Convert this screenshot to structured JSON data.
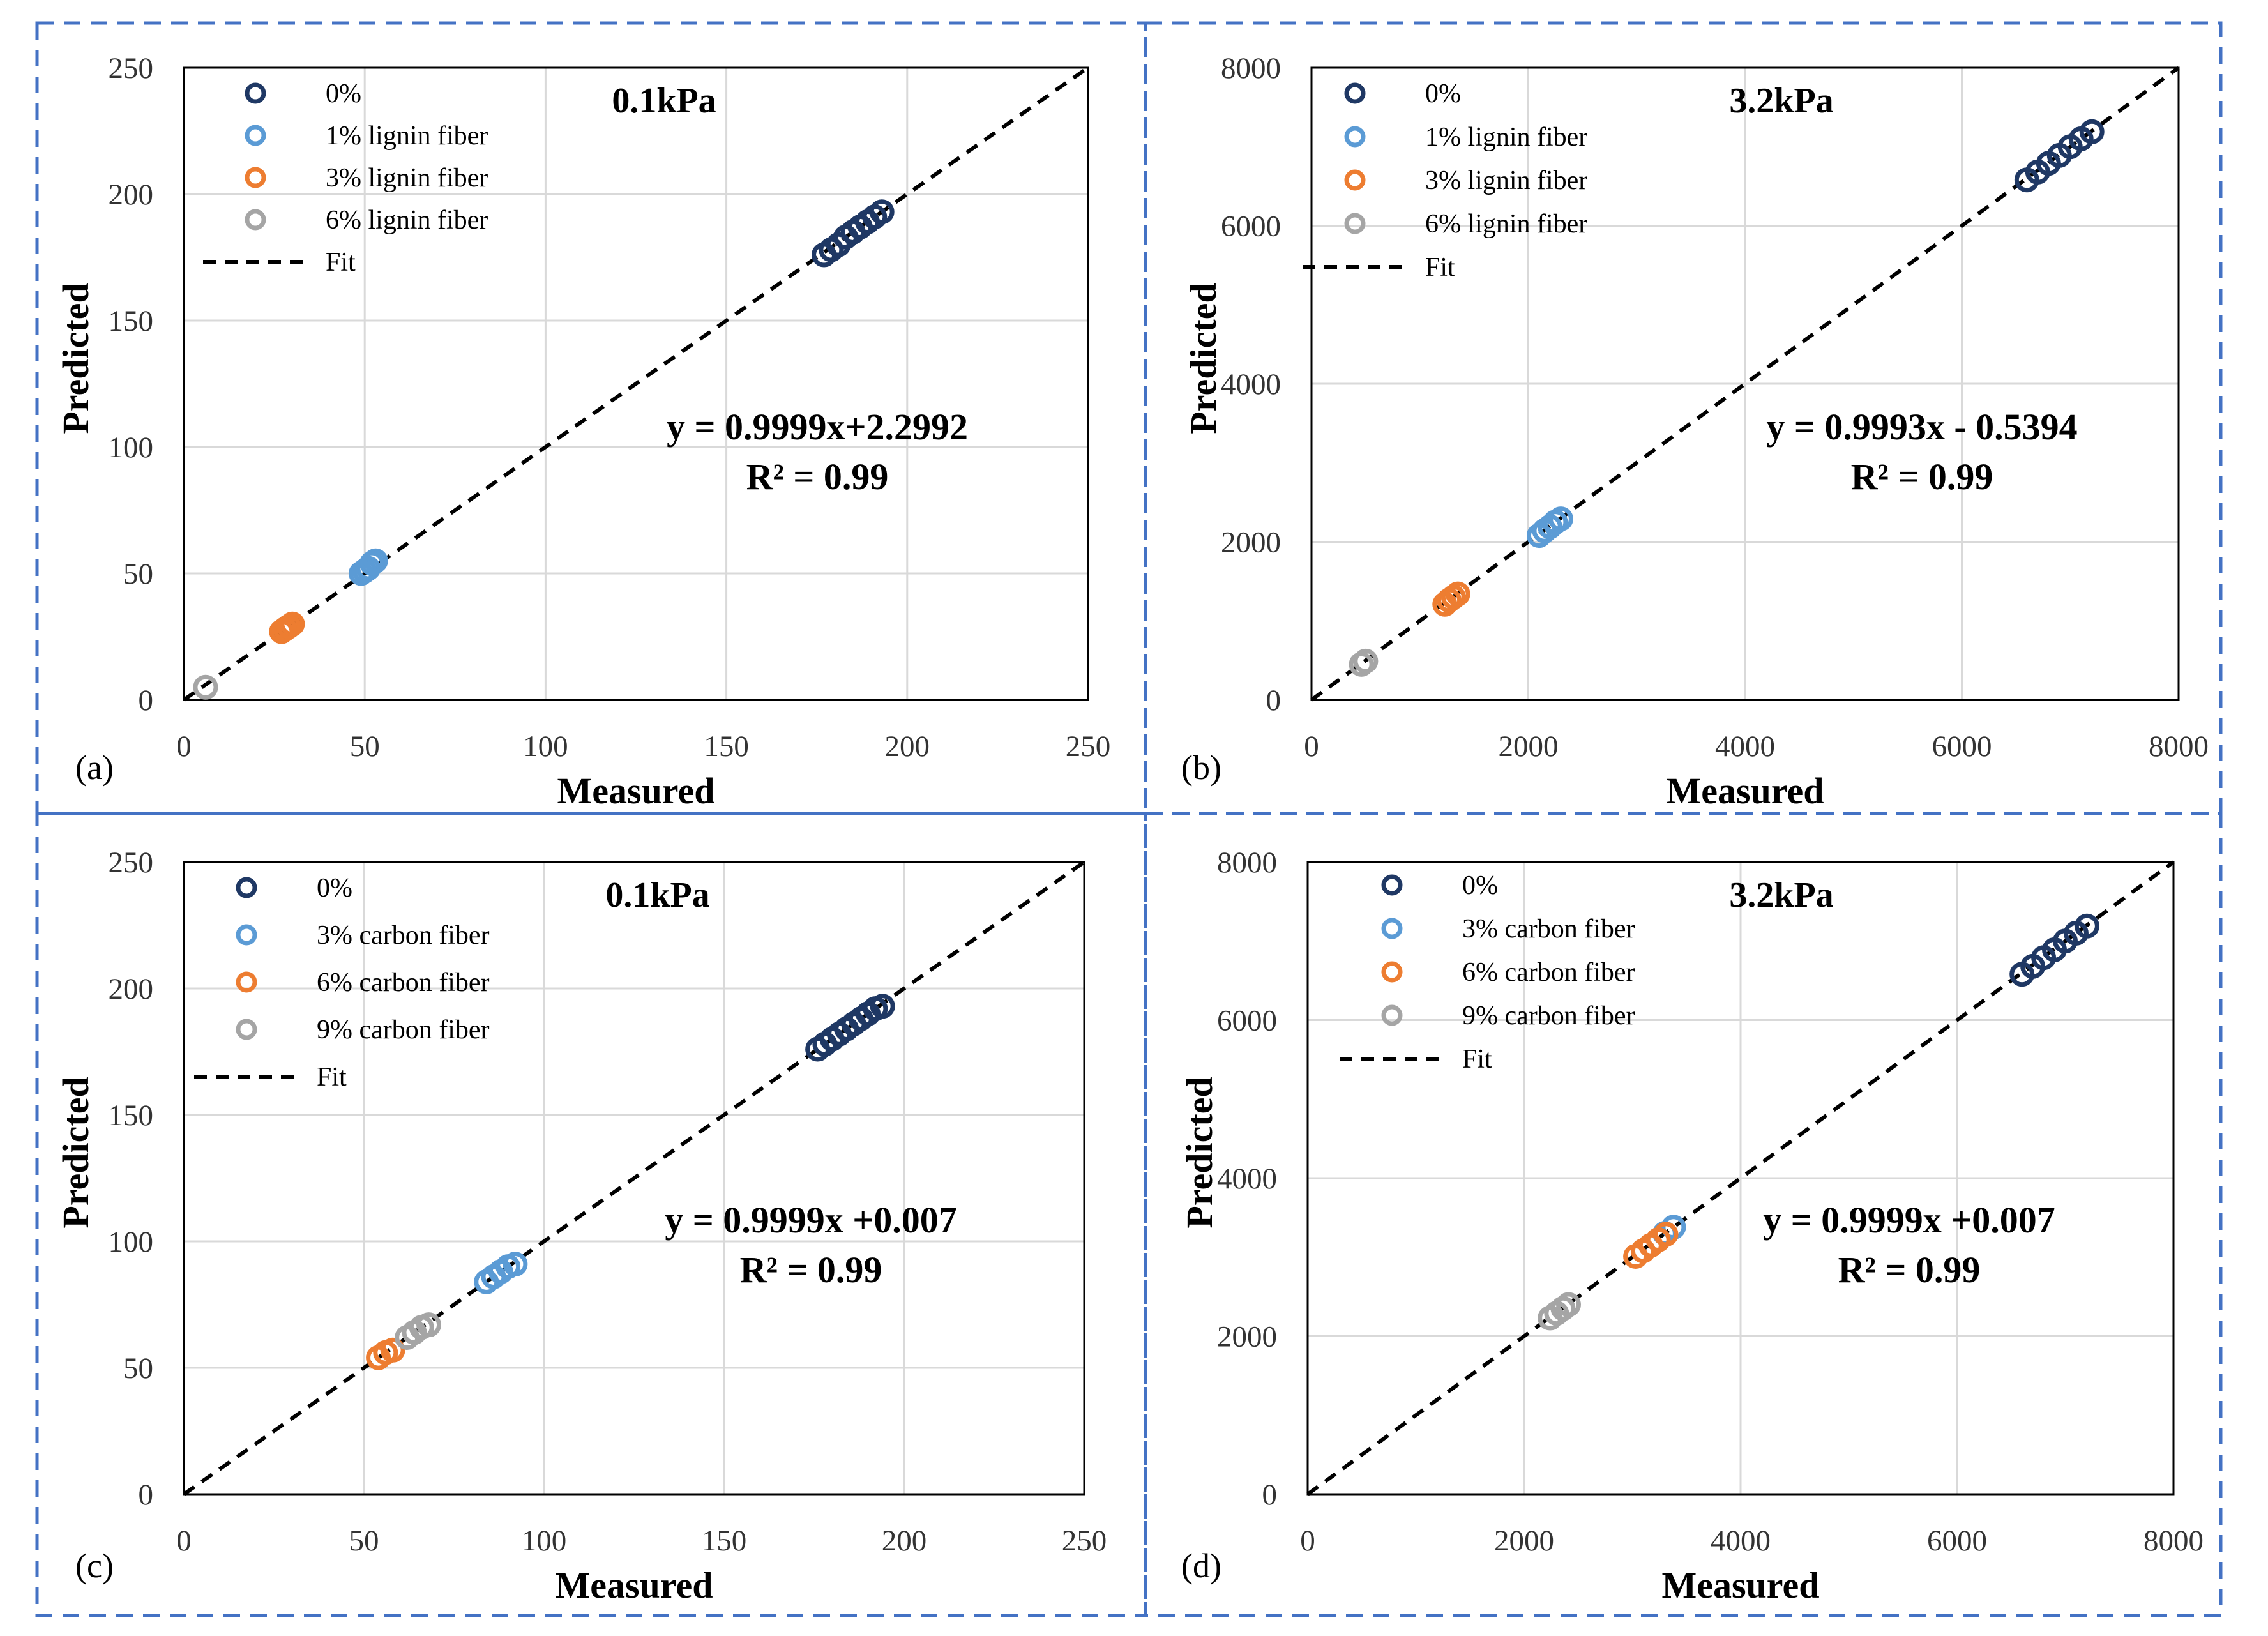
{
  "colors": {
    "border": "#4472C4",
    "grid": "#D9D9D9",
    "s0": "#1F3864",
    "s1": "#5B9BD5",
    "s2": "#ED7D31",
    "s3": "#A5A5A5",
    "fit": "#000000"
  },
  "panels": [
    {
      "label": "(a)",
      "chart_data": {
        "type": "scatter",
        "title": "0.1kPa",
        "xlabel": "Measured",
        "ylabel": "Predicted",
        "xlim": [
          0,
          250
        ],
        "ylim": [
          0,
          250
        ],
        "xticks": [
          "0",
          "50",
          "100",
          "150",
          "200",
          "250"
        ],
        "yticks": [
          "0",
          "50",
          "100",
          "150",
          "200",
          "250"
        ],
        "grid": true,
        "legend": "top-left",
        "equation": "y = 0.9999x+2.2992",
        "r2": "R² = 0.99",
        "fit_label": "Fit",
        "fit_line": [
          [
            0,
            0
          ],
          [
            250,
            250
          ]
        ],
        "series": [
          {
            "name": "0%",
            "x": [
              177,
              179,
              181,
              183,
              185,
              187,
              189,
              191,
              193
            ],
            "y": [
              176,
              178,
              180,
              183,
              185,
              187,
              189,
              191,
              193
            ]
          },
          {
            "name": "1% lignin fiber",
            "x": [
              49,
              50,
              51,
              52,
              53
            ],
            "y": [
              50,
              51,
              52,
              54,
              55
            ]
          },
          {
            "name": "3% lignin fiber",
            "x": [
              27,
              28,
              29,
              30
            ],
            "y": [
              27,
              28,
              29,
              30
            ]
          },
          {
            "name": "6% lignin fiber",
            "x": [
              6
            ],
            "y": [
              5
            ]
          }
        ]
      }
    },
    {
      "label": "(b)",
      "chart_data": {
        "type": "scatter",
        "title": "3.2kPa",
        "xlabel": "Measured",
        "ylabel": "Predicted",
        "xlim": [
          0,
          8000
        ],
        "ylim": [
          0,
          8000
        ],
        "xticks": [
          "0",
          "2000",
          "4000",
          "6000",
          "8000"
        ],
        "yticks": [
          "0",
          "2000",
          "4000",
          "6000",
          "8000"
        ],
        "grid": true,
        "legend": "top-left",
        "equation": "y = 0.9993x - 0.5394",
        "r2": "R² = 0.99",
        "fit_label": "Fit",
        "fit_line": [
          [
            0,
            0
          ],
          [
            8000,
            8000
          ]
        ],
        "series": [
          {
            "name": "0%",
            "x": [
              6600,
              6700,
              6800,
              6900,
              7000,
              7100,
              7200
            ],
            "y": [
              6580,
              6680,
              6790,
              6890,
              7000,
              7100,
              7190
            ]
          },
          {
            "name": "1% lignin fiber",
            "x": [
              2100,
              2150,
              2200,
              2250,
              2300
            ],
            "y": [
              2080,
              2140,
              2190,
              2250,
              2290
            ]
          },
          {
            "name": "3% lignin fiber",
            "x": [
              1230,
              1270,
              1310,
              1350
            ],
            "y": [
              1210,
              1260,
              1300,
              1340
            ]
          },
          {
            "name": "6% lignin fiber",
            "x": [
              460,
              500
            ],
            "y": [
              450,
              490
            ]
          }
        ]
      }
    },
    {
      "label": "(c)",
      "chart_data": {
        "type": "scatter",
        "title": "0.1kPa",
        "xlabel": "Measured",
        "ylabel": "Predicted",
        "xlim": [
          0,
          250
        ],
        "ylim": [
          0,
          250
        ],
        "xticks": [
          "0",
          "50",
          "100",
          "150",
          "200",
          "250"
        ],
        "yticks": [
          "0",
          "50",
          "100",
          "150",
          "200",
          "250"
        ],
        "grid": true,
        "legend": "top-left",
        "equation": "y = 0.9999x +0.007",
        "r2": "R² = 0.99",
        "fit_label": "Fit",
        "fit_line": [
          [
            0,
            0
          ],
          [
            250,
            250
          ]
        ],
        "series": [
          {
            "name": "0%",
            "x": [
              176,
              178,
              180,
              182,
              184,
              186,
              188,
              190,
              192,
              194
            ],
            "y": [
              176,
              178,
              180,
              182,
              184,
              186,
              188,
              190,
              192,
              193
            ]
          },
          {
            "name": "3% carbon fiber",
            "x": [
              84,
              86,
              88,
              90,
              92
            ],
            "y": [
              84,
              86,
              88,
              90,
              91
            ]
          },
          {
            "name": "6% carbon fiber",
            "x": [
              54,
              56,
              58
            ],
            "y": [
              54,
              56,
              57
            ]
          },
          {
            "name": "9% carbon fiber",
            "x": [
              62,
              64,
              66,
              68
            ],
            "y": [
              62,
              64,
              66,
              67
            ]
          }
        ]
      }
    },
    {
      "label": "(d)",
      "chart_data": {
        "type": "scatter",
        "title": "3.2kPa",
        "xlabel": "Measured",
        "ylabel": "Predicted",
        "xlim": [
          0,
          8000
        ],
        "ylim": [
          0,
          8000
        ],
        "xticks": [
          "0",
          "2000",
          "4000",
          "6000",
          "8000"
        ],
        "yticks": [
          "0",
          "2000",
          "4000",
          "6000",
          "8000"
        ],
        "grid": true,
        "legend": "top-left",
        "equation": "y = 0.9999x +0.007",
        "r2": "R² = 0.99",
        "fit_label": "Fit",
        "fit_line": [
          [
            0,
            0
          ],
          [
            8000,
            8000
          ]
        ],
        "series": [
          {
            "name": "0%",
            "x": [
              6600,
              6700,
              6800,
              6900,
              7000,
              7100,
              7200
            ],
            "y": [
              6580,
              6680,
              6790,
              6890,
              7000,
              7100,
              7190
            ]
          },
          {
            "name": "3% carbon fiber",
            "x": [
              3300,
              3380
            ],
            "y": [
              3300,
              3380
            ]
          },
          {
            "name": "6% carbon fiber",
            "x": [
              3030,
              3100,
              3170,
              3240,
              3310
            ],
            "y": [
              3010,
              3080,
              3150,
              3220,
              3290
            ]
          },
          {
            "name": "9% carbon fiber",
            "x": [
              2240,
              2300,
              2360,
              2410
            ],
            "y": [
              2230,
              2290,
              2350,
              2400
            ]
          }
        ]
      }
    }
  ]
}
